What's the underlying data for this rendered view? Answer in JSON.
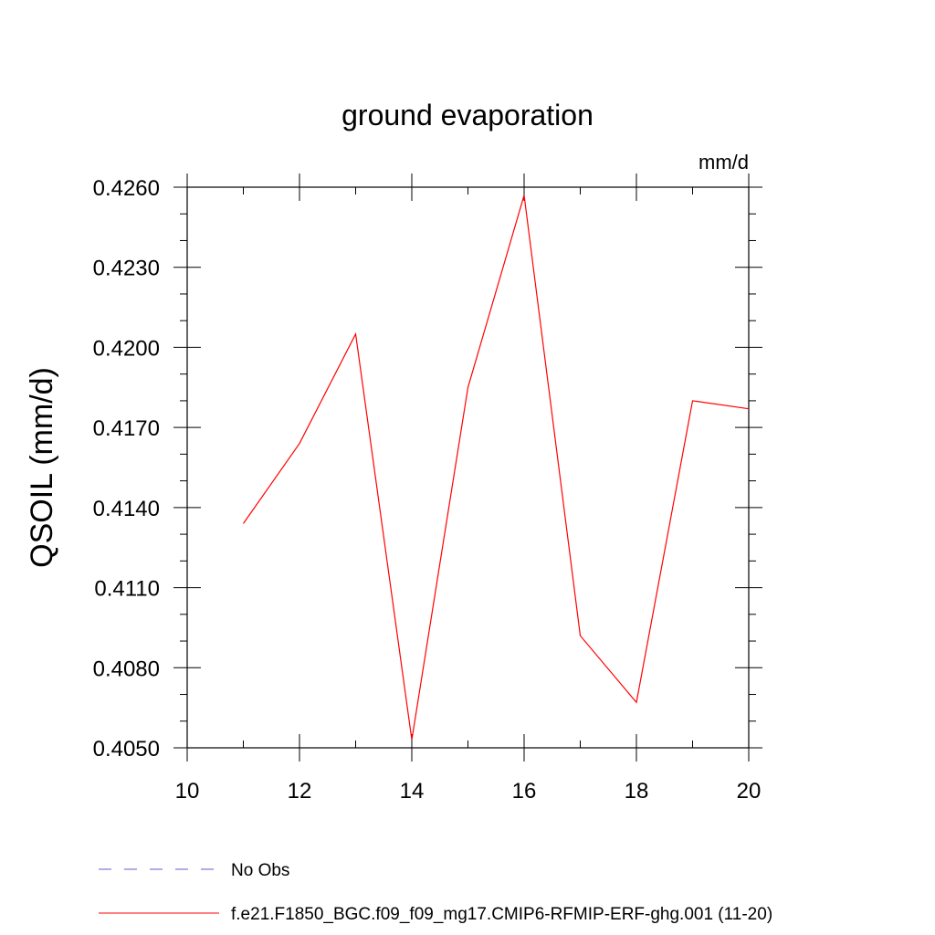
{
  "chart_data": {
    "type": "line",
    "title": "ground evaporation",
    "units_label": "mm/d",
    "ylabel": "QSOIL  (mm/d)",
    "xlabel": "",
    "xlim": [
      10,
      20
    ],
    "ylim": [
      0.405,
      0.426
    ],
    "x_ticks": [
      10,
      12,
      14,
      16,
      18,
      20
    ],
    "x_tick_labels": [
      "10",
      "12",
      "14",
      "16",
      "18",
      "20"
    ],
    "y_ticks": [
      0.405,
      0.408,
      0.411,
      0.414,
      0.417,
      0.42,
      0.423,
      0.426
    ],
    "y_tick_labels": [
      "0.4050",
      "0.4080",
      "0.4110",
      "0.4140",
      "0.4170",
      "0.4200",
      "0.4230",
      "0.4260"
    ],
    "y_minor_step": 0.001,
    "x_minor_step": 1,
    "grid": false,
    "legend_position": "bottom",
    "series": [
      {
        "name": "f.e21.F1850_BGC.f09_f09_mg17.CMIP6-RFMIP-ERF-ghg.001 (11-20)",
        "color": "#ff0000",
        "dash": "solid",
        "x": [
          11,
          12,
          13,
          14,
          15,
          16,
          17,
          18,
          19,
          20
        ],
        "values": [
          0.4134,
          0.4164,
          0.4205,
          0.4053,
          0.4185,
          0.4257,
          0.4092,
          0.4067,
          0.418,
          0.4177
        ]
      }
    ],
    "legend": [
      {
        "label": "No Obs",
        "color": "#6a5acd",
        "dash": "dashed"
      },
      {
        "label": "f.e21.F1850_BGC.f09_f09_mg17.CMIP6-RFMIP-ERF-ghg.001 (11-20)",
        "color": "#ff0000",
        "dash": "solid"
      }
    ]
  }
}
